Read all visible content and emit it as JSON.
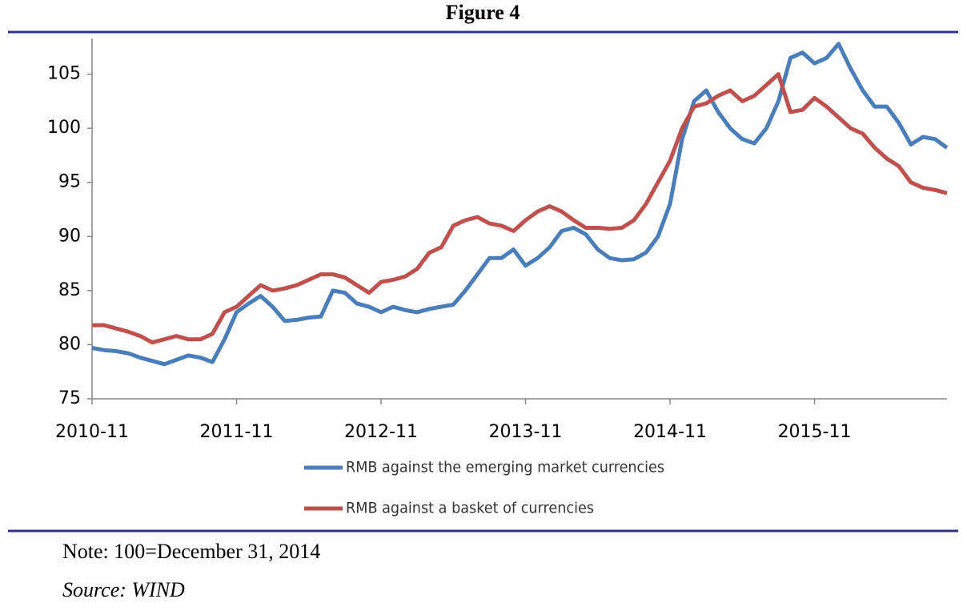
{
  "figure_title": "Figure 4",
  "note": "Note: 100=December 31, 2014",
  "source": "Source: WIND",
  "chart_data": {
    "type": "line",
    "x": [
      "2010-11",
      "2010-12",
      "2011-01",
      "2011-02",
      "2011-03",
      "2011-04",
      "2011-05",
      "2011-06",
      "2011-07",
      "2011-08",
      "2011-09",
      "2011-10",
      "2011-11",
      "2011-12",
      "2012-01",
      "2012-02",
      "2012-03",
      "2012-04",
      "2012-05",
      "2012-06",
      "2012-07",
      "2012-08",
      "2012-09",
      "2012-10",
      "2012-11",
      "2012-12",
      "2013-01",
      "2013-02",
      "2013-03",
      "2013-04",
      "2013-05",
      "2013-06",
      "2013-07",
      "2013-08",
      "2013-09",
      "2013-10",
      "2013-11",
      "2013-12",
      "2014-01",
      "2014-02",
      "2014-03",
      "2014-04",
      "2014-05",
      "2014-06",
      "2014-07",
      "2014-08",
      "2014-09",
      "2014-10",
      "2014-11",
      "2014-12",
      "2015-01",
      "2015-02",
      "2015-03",
      "2015-04",
      "2015-05",
      "2015-06",
      "2015-07",
      "2015-08",
      "2015-09",
      "2015-10",
      "2015-11",
      "2015-12",
      "2016-01",
      "2016-02",
      "2016-03",
      "2016-04",
      "2016-05",
      "2016-06",
      "2016-07",
      "2016-08",
      "2016-09",
      "2016-10"
    ],
    "xticks": [
      "2010-11",
      "2011-11",
      "2012-11",
      "2013-11",
      "2014-11",
      "2015-11"
    ],
    "ylim": [
      75,
      108.3
    ],
    "yticks": [
      75,
      80,
      85,
      90,
      95,
      100,
      105
    ],
    "grid": false,
    "series": [
      {
        "name": "RMB against the emerging market currencies",
        "color": "#4a7ebb",
        "values": [
          79.7,
          79.5,
          79.4,
          79.2,
          78.8,
          78.5,
          78.2,
          78.6,
          79.0,
          78.8,
          78.4,
          80.5,
          83.0,
          83.8,
          84.5,
          83.5,
          82.2,
          82.3,
          82.5,
          82.6,
          85.0,
          84.8,
          83.8,
          83.5,
          83.0,
          83.5,
          83.2,
          83.0,
          83.3,
          83.5,
          83.7,
          85.0,
          86.5,
          88.0,
          88.0,
          88.8,
          87.3,
          88.0,
          89.0,
          90.5,
          90.8,
          90.2,
          88.8,
          88.0,
          87.8,
          87.9,
          88.5,
          90.0,
          93.0,
          99.0,
          102.5,
          103.5,
          101.5,
          100.0,
          99.0,
          98.6,
          100.0,
          102.5,
          106.5,
          107.0,
          106.0,
          106.5,
          107.8,
          105.5,
          103.5,
          102.0,
          102.0,
          100.5,
          98.5,
          99.2,
          99.0,
          98.2
        ]
      },
      {
        "name": "RMB against a basket of currencies",
        "color": "#c0504d",
        "values": [
          81.8,
          81.8,
          81.5,
          81.2,
          80.8,
          80.2,
          80.5,
          80.8,
          80.5,
          80.5,
          81.0,
          83.0,
          83.5,
          84.5,
          85.5,
          85.0,
          85.2,
          85.5,
          86.0,
          86.5,
          86.5,
          86.2,
          85.5,
          84.8,
          85.8,
          86.0,
          86.3,
          87.0,
          88.5,
          89.0,
          91.0,
          91.5,
          91.8,
          91.2,
          91.0,
          90.5,
          91.5,
          92.3,
          92.8,
          92.3,
          91.5,
          90.8,
          90.8,
          90.7,
          90.8,
          91.5,
          93.0,
          95.0,
          97.0,
          100.0,
          102.0,
          102.3,
          103.0,
          103.5,
          102.5,
          103.0,
          104.0,
          105.0,
          101.5,
          101.7,
          102.8,
          102.0,
          101.0,
          100.0,
          99.5,
          98.2,
          97.2,
          96.5,
          95.0,
          94.5,
          94.3,
          94.0
        ]
      }
    ]
  }
}
